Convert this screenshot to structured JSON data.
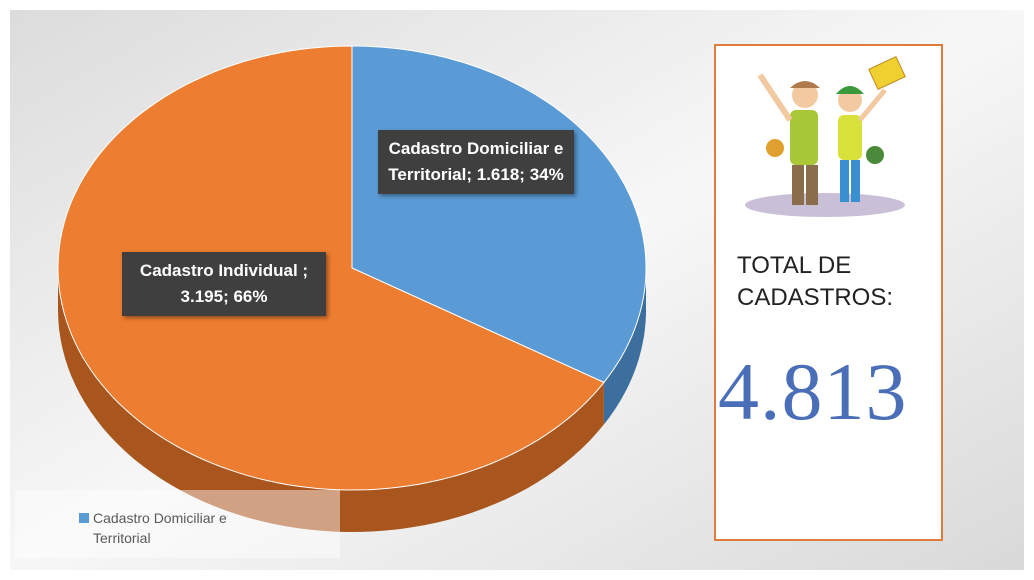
{
  "chart_data": {
    "type": "pie3d",
    "categories": [
      "Cadastro Domiciliar e Territorial",
      "Cadastro Individual "
    ],
    "values": [
      1618,
      3195
    ],
    "value_labels": [
      "1.618",
      "3.195"
    ],
    "percents": [
      34,
      66
    ],
    "percent_labels": [
      "34%",
      "66%"
    ],
    "label_separator": "; ",
    "colors": [
      "#5b9bd5",
      "#ed7d31"
    ],
    "side_colors": [
      "#3d6f9e",
      "#a9561e"
    ],
    "legend": [
      0
    ]
  },
  "summary": {
    "title": "TOTAL DE CADASTROS:",
    "total": {
      "value": 4813,
      "label": "4.813"
    }
  }
}
